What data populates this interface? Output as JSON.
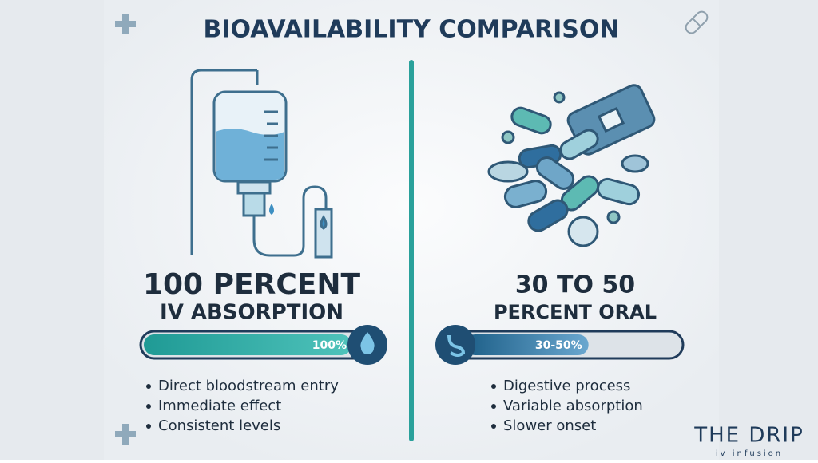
{
  "title": "BIOAVAILABILITY COMPARISON",
  "left": {
    "headline": "100 PERCENT",
    "subheadline": "IV ABSORPTION",
    "bar": {
      "value": 100,
      "label": "100%"
    },
    "bullets": [
      "Direct bloodstream entry",
      "Immediate effect",
      "Consistent levels"
    ]
  },
  "right": {
    "headline": "30 TO 50",
    "subheadline": "PERCENT ORAL",
    "bar": {
      "min": 30,
      "max": 50,
      "label": "30-50%"
    },
    "bullets": [
      "Digestive process",
      "Variable absorption",
      "Slower onset"
    ]
  },
  "logo": {
    "name": "THE DRIP",
    "tagline": "iv infusion"
  }
}
